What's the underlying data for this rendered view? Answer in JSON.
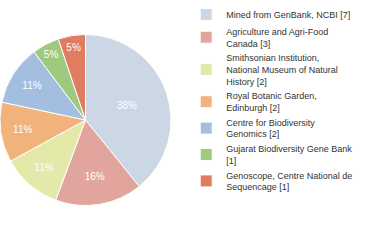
{
  "chart_data": {
    "type": "pie",
    "categories": [
      "Mined from GenBank, NCBI [7]",
      "Agriculture and Agri-Food Canada [3]",
      "Smithsonian Institution, National Museum of Natural History [2]",
      "Royal Botanic Garden, Edinburgh [2]",
      "Centre for Biodiversity Genomics [2]",
      "Gujarat Biodiversity Gene Bank [1]",
      "Genoscope, Centre National de Sequencage [1]"
    ],
    "values": [
      38,
      16,
      11,
      11,
      11,
      5,
      5
    ],
    "value_labels": [
      "38%",
      "16%",
      "11%",
      "11%",
      "11%",
      "5%",
      "5%"
    ],
    "colors": [
      "#cbd7e4",
      "#e2a59d",
      "#e4e8a9",
      "#f2b27c",
      "#a4bee0",
      "#9fc97f",
      "#e07c5f"
    ],
    "data_labels": true,
    "legend": "right"
  }
}
